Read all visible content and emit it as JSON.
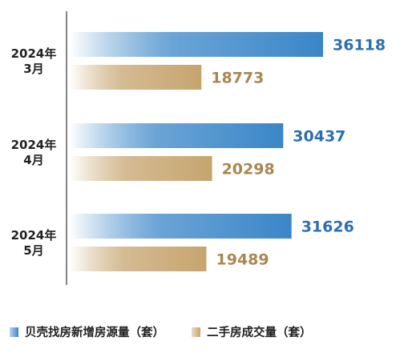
{
  "chart_data": {
    "type": "bar",
    "orientation": "horizontal",
    "categories": [
      [
        "2024年",
        "3月"
      ],
      [
        "2024年",
        "4月"
      ],
      [
        "2024年",
        "5月"
      ]
    ],
    "series": [
      {
        "name": "贝壳找房新增房源量（套）",
        "values": [
          36118,
          30437,
          31626
        ],
        "color": "#3a86c8",
        "color_start": "#ffffff"
      },
      {
        "name": "二手房成交量（套）",
        "values": [
          18773,
          20298,
          19489
        ],
        "color": "#c6a46e",
        "color_start": "#ffffff"
      }
    ],
    "title": "",
    "xlabel": "",
    "ylabel": "",
    "xlim": [
      0,
      36118
    ],
    "grid": false,
    "legend_position": "bottom-left",
    "value_label_colors": [
      "#2c6fb0",
      "#a98752"
    ]
  }
}
